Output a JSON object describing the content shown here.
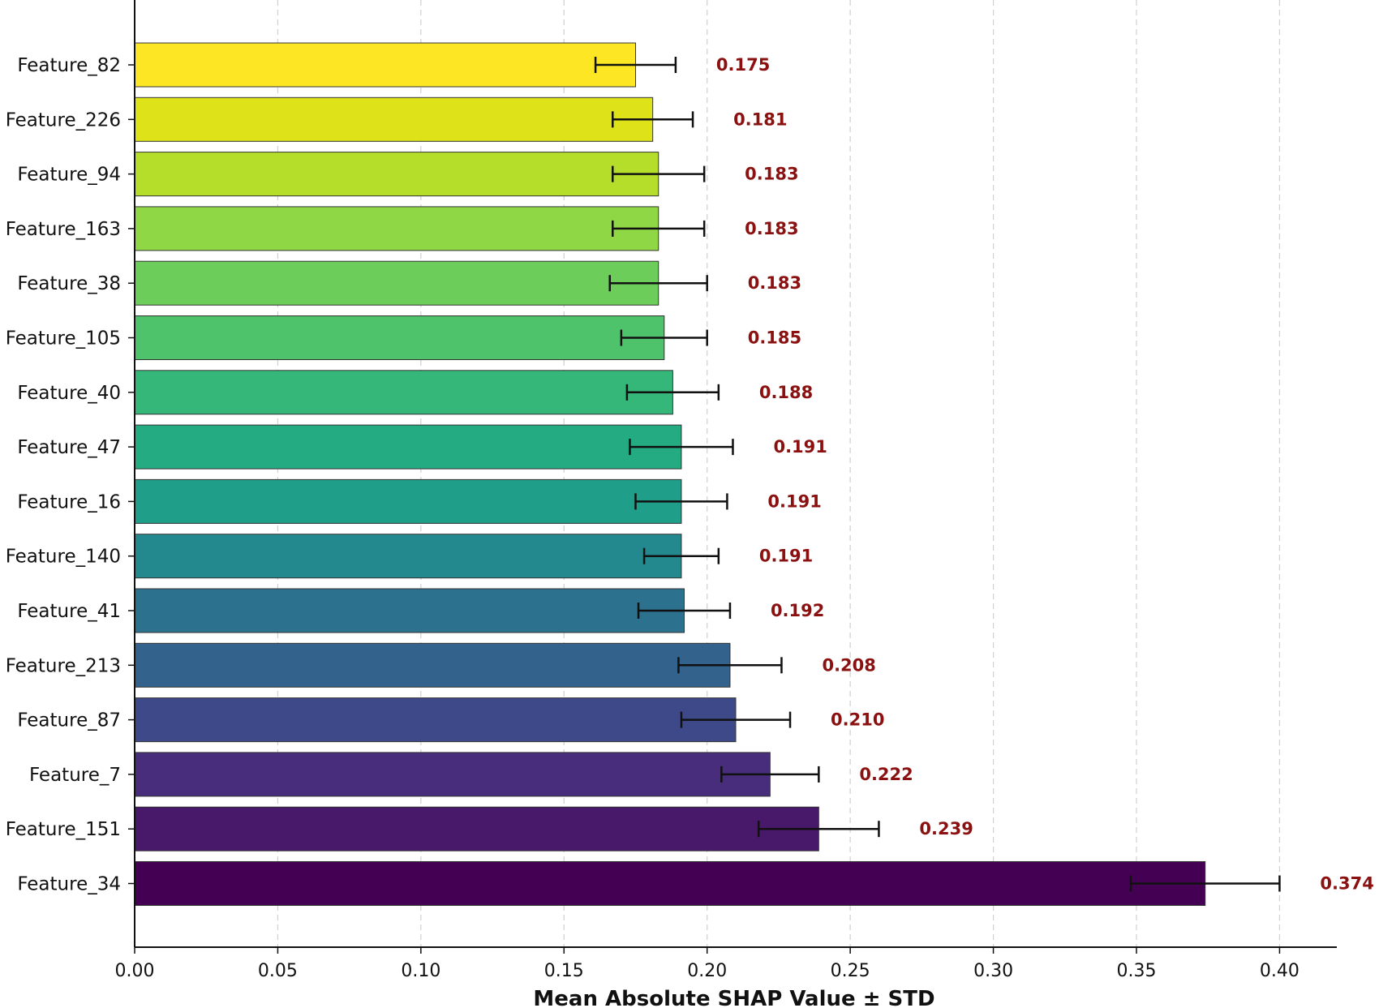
{
  "chart_data": {
    "type": "bar",
    "orientation": "horizontal",
    "title": "",
    "xlabel": "Mean Absolute SHAP Value ± STD",
    "ylabel": "",
    "xlim": [
      0,
      0.42
    ],
    "xticks": [
      "0.00",
      "0.05",
      "0.10",
      "0.15",
      "0.20",
      "0.25",
      "0.30",
      "0.35",
      "0.40"
    ],
    "grid": "vertical dashed",
    "colormap": "viridis",
    "value_label_color": "#8b1111",
    "error_bar_color": "#111111",
    "categories": [
      "Feature_82",
      "Feature_226",
      "Feature_94",
      "Feature_163",
      "Feature_38",
      "Feature_105",
      "Feature_40",
      "Feature_47",
      "Feature_16",
      "Feature_140",
      "Feature_41",
      "Feature_213",
      "Feature_87",
      "Feature_7",
      "Feature_151",
      "Feature_34"
    ],
    "values": [
      0.175,
      0.181,
      0.183,
      0.183,
      0.183,
      0.185,
      0.188,
      0.191,
      0.191,
      0.191,
      0.192,
      0.208,
      0.21,
      0.222,
      0.239,
      0.374
    ],
    "value_labels": [
      "0.175",
      "0.181",
      "0.183",
      "0.183",
      "0.183",
      "0.185",
      "0.188",
      "0.191",
      "0.191",
      "0.191",
      "0.192",
      "0.208",
      "0.210",
      "0.222",
      "0.239",
      "0.374"
    ],
    "std": [
      0.014,
      0.014,
      0.016,
      0.016,
      0.017,
      0.015,
      0.016,
      0.018,
      0.016,
      0.013,
      0.016,
      0.018,
      0.019,
      0.017,
      0.021,
      0.026
    ],
    "colors": [
      "#fde725",
      "#dde318",
      "#b5de2b",
      "#8fd744",
      "#6ccd5a",
      "#4ec36b",
      "#35b779",
      "#25ab82",
      "#1f9e89",
      "#23898e",
      "#2c718e",
      "#33638d",
      "#3e4989",
      "#472d7b",
      "#48186a",
      "#440154"
    ]
  }
}
